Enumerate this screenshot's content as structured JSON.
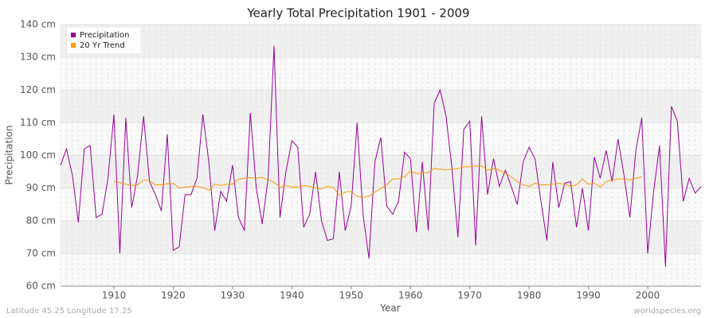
{
  "chart_data": {
    "type": "line",
    "title": "Yearly Total Precipitation 1901 - 2009",
    "x_label": "Year",
    "y_label": "Precipitation",
    "footer_left": "Latitude 45.25 Longitude 17.25",
    "footer_right": "worldspecies.org",
    "legend_position": "top-left",
    "grid": true,
    "x": [
      1901,
      1902,
      1903,
      1904,
      1905,
      1906,
      1907,
      1908,
      1909,
      1910,
      1911,
      1912,
      1913,
      1914,
      1915,
      1916,
      1917,
      1918,
      1919,
      1920,
      1921,
      1922,
      1923,
      1924,
      1925,
      1926,
      1927,
      1928,
      1929,
      1930,
      1931,
      1932,
      1933,
      1934,
      1935,
      1936,
      1937,
      1938,
      1939,
      1940,
      1941,
      1942,
      1943,
      1944,
      1945,
      1946,
      1947,
      1948,
      1949,
      1950,
      1951,
      1952,
      1953,
      1954,
      1955,
      1956,
      1957,
      1958,
      1959,
      1960,
      1961,
      1962,
      1963,
      1964,
      1965,
      1966,
      1967,
      1968,
      1969,
      1970,
      1971,
      1972,
      1973,
      1974,
      1975,
      1976,
      1977,
      1978,
      1979,
      1980,
      1981,
      1982,
      1983,
      1984,
      1985,
      1986,
      1987,
      1988,
      1989,
      1990,
      1991,
      1992,
      1993,
      1994,
      1995,
      1996,
      1997,
      1998,
      1999,
      2000,
      2001,
      2002,
      2003,
      2004,
      2005,
      2006,
      2007,
      2008,
      2009
    ],
    "xlim": [
      1901,
      2009
    ],
    "xticks": [
      1910,
      1920,
      1930,
      1940,
      1950,
      1960,
      1970,
      1980,
      1990,
      2000
    ],
    "ylim": [
      60,
      140
    ],
    "yticks": [
      {
        "value": 60,
        "label": "60 cm"
      },
      {
        "value": 70,
        "label": "70 cm"
      },
      {
        "value": 80,
        "label": "80 cm"
      },
      {
        "value": 90,
        "label": "90 cm"
      },
      {
        "value": 100,
        "label": "100 cm"
      },
      {
        "value": 110,
        "label": "110 cm"
      },
      {
        "value": 120,
        "label": "120 cm"
      },
      {
        "value": 130,
        "label": "130 cm"
      },
      {
        "value": 140,
        "label": "140 cm"
      }
    ],
    "series": [
      {
        "name": "Precipitation",
        "color": "#990099",
        "values": [
          97,
          102,
          94,
          79.5,
          102,
          103,
          81,
          82,
          93,
          112.5,
          70,
          111.5,
          84,
          94,
          112,
          92,
          88,
          83,
          106.5,
          71,
          72,
          88,
          88,
          93,
          112.5,
          98,
          77,
          89,
          86,
          97,
          81,
          77,
          113,
          90,
          79,
          93,
          133.5,
          81,
          95,
          104.5,
          102.5,
          78,
          82,
          95,
          80,
          74,
          74.5,
          95,
          77,
          84.5,
          110,
          82,
          68.5,
          98,
          105.5,
          84.5,
          82,
          86,
          101,
          99,
          76.5,
          98,
          77,
          116,
          120,
          112,
          96,
          75,
          108,
          110.5,
          72.5,
          112,
          88,
          99,
          90.5,
          95.5,
          90.5,
          85,
          98,
          102.5,
          99,
          86,
          74,
          98,
          84,
          91.5,
          92,
          78,
          90,
          77,
          99.5,
          93,
          101.5,
          92,
          105,
          94,
          81,
          101.5,
          111.5,
          70,
          89,
          103,
          66,
          115,
          110.5,
          86,
          93,
          88.5,
          90.5
        ]
      },
      {
        "name": "20 Yr Trend",
        "color": "#ff9900",
        "values": [
          null,
          null,
          null,
          null,
          null,
          null,
          null,
          null,
          null,
          92,
          91.7,
          91.2,
          90.8,
          91,
          92.5,
          92.3,
          91,
          91,
          91.3,
          91.5,
          90,
          90.3,
          90.5,
          90.5,
          90.2,
          89.3,
          91.2,
          90.8,
          91.2,
          91.2,
          92.7,
          93,
          93.2,
          93,
          93.3,
          92.5,
          91.8,
          90.2,
          90.8,
          90.3,
          90.3,
          90.8,
          90.5,
          90,
          89.8,
          90.5,
          90.2,
          87.8,
          88.8,
          89,
          87.5,
          87.2,
          87.5,
          88.8,
          89.8,
          91,
          92.8,
          92.8,
          93.5,
          95.2,
          94.5,
          94.5,
          94.8,
          96,
          95.8,
          95.5,
          95.8,
          96,
          96.5,
          96.5,
          96.8,
          96.8,
          95.5,
          96,
          95.5,
          94.5,
          93.5,
          92,
          91,
          90.5,
          91.5,
          91,
          91,
          91.2,
          91.5,
          91.2,
          90.5,
          91,
          92.8,
          91.2,
          91.5,
          90.3,
          92,
          92.5,
          92.8,
          92.8,
          92.5,
          93,
          93.5,
          null,
          null,
          null,
          null,
          null,
          null,
          null,
          null,
          null,
          null
        ]
      }
    ]
  }
}
